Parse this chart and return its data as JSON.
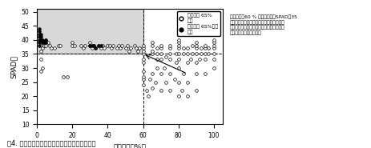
{
  "title": "図4. 飼料イネの籾黄化率と止め葉葉色値の関係",
  "xlabel": "籾黄化率（%）",
  "ylabel": "SPAD値",
  "xlim": [
    0,
    105
  ],
  "ylim": [
    10,
    51
  ],
  "xticks": [
    0,
    20,
    40,
    60,
    80,
    100
  ],
  "yticks": [
    10,
    15,
    20,
    25,
    30,
    35,
    40,
    45,
    50
  ],
  "hline_y": 35,
  "vline_x": 60,
  "legend_label_open": "水分含量 65%\n以下",
  "legend_label_filled": "水分含量 65%より\n高い",
  "annotation_text": "籾黄化率が60 % 未満、止め葉SPAD値35\nより大きい場合は、多肥栽培条件でダイレ\nクトカット収穫に不適な高水分条件の飼料\nイネの圃場が出てくる。",
  "open_points": [
    [
      2,
      29
    ],
    [
      2,
      33
    ],
    [
      2,
      36
    ],
    [
      2,
      38
    ],
    [
      3,
      30
    ],
    [
      3,
      37
    ],
    [
      4,
      38
    ],
    [
      5,
      38
    ],
    [
      5,
      40
    ],
    [
      6,
      39
    ],
    [
      7,
      38
    ],
    [
      8,
      37
    ],
    [
      10,
      37
    ],
    [
      12,
      38
    ],
    [
      13,
      38
    ],
    [
      15,
      27
    ],
    [
      17,
      27
    ],
    [
      20,
      38
    ],
    [
      20,
      39
    ],
    [
      21,
      38
    ],
    [
      25,
      38
    ],
    [
      26,
      37
    ],
    [
      27,
      38
    ],
    [
      30,
      38
    ],
    [
      30,
      39
    ],
    [
      31,
      37
    ],
    [
      32,
      38
    ],
    [
      33,
      37
    ],
    [
      35,
      38
    ],
    [
      36,
      37
    ],
    [
      37,
      38
    ],
    [
      38,
      37
    ],
    [
      40,
      38
    ],
    [
      41,
      38
    ],
    [
      42,
      37
    ],
    [
      43,
      38
    ],
    [
      45,
      37
    ],
    [
      46,
      38
    ],
    [
      47,
      37
    ],
    [
      48,
      38
    ],
    [
      50,
      37
    ],
    [
      51,
      38
    ],
    [
      52,
      36
    ],
    [
      53,
      37
    ],
    [
      55,
      38
    ],
    [
      56,
      37
    ],
    [
      57,
      36
    ],
    [
      58,
      37
    ],
    [
      60,
      24
    ],
    [
      60,
      26
    ],
    [
      60,
      27
    ],
    [
      60,
      29
    ],
    [
      60,
      32
    ],
    [
      60,
      33
    ],
    [
      60,
      35
    ],
    [
      60,
      36
    ],
    [
      60,
      37
    ],
    [
      60,
      38
    ],
    [
      62,
      22
    ],
    [
      63,
      20
    ],
    [
      64,
      26
    ],
    [
      65,
      23
    ],
    [
      65,
      28
    ],
    [
      65,
      35
    ],
    [
      65,
      36
    ],
    [
      65,
      38
    ],
    [
      65,
      39
    ],
    [
      67,
      25
    ],
    [
      68,
      30
    ],
    [
      68,
      33
    ],
    [
      68,
      35
    ],
    [
      68,
      37
    ],
    [
      70,
      22
    ],
    [
      70,
      28
    ],
    [
      70,
      33
    ],
    [
      70,
      35
    ],
    [
      70,
      37
    ],
    [
      70,
      38
    ],
    [
      72,
      30
    ],
    [
      73,
      25
    ],
    [
      73,
      34
    ],
    [
      75,
      22
    ],
    [
      75,
      28
    ],
    [
      75,
      33
    ],
    [
      75,
      35
    ],
    [
      75,
      37
    ],
    [
      75,
      38
    ],
    [
      78,
      26
    ],
    [
      79,
      32
    ],
    [
      79,
      35
    ],
    [
      80,
      20
    ],
    [
      80,
      25
    ],
    [
      80,
      30
    ],
    [
      80,
      33
    ],
    [
      80,
      35
    ],
    [
      80,
      37
    ],
    [
      80,
      38
    ],
    [
      80,
      39
    ],
    [
      80,
      40
    ],
    [
      82,
      22
    ],
    [
      83,
      28
    ],
    [
      83,
      35
    ],
    [
      83,
      37
    ],
    [
      85,
      20
    ],
    [
      85,
      25
    ],
    [
      85,
      32
    ],
    [
      85,
      35
    ],
    [
      85,
      37
    ],
    [
      87,
      33
    ],
    [
      88,
      35
    ],
    [
      88,
      38
    ],
    [
      90,
      22
    ],
    [
      90,
      28
    ],
    [
      90,
      32
    ],
    [
      90,
      35
    ],
    [
      90,
      37
    ],
    [
      90,
      38
    ],
    [
      90,
      39
    ],
    [
      92,
      33
    ],
    [
      93,
      35
    ],
    [
      93,
      37
    ],
    [
      95,
      28
    ],
    [
      95,
      33
    ],
    [
      95,
      35
    ],
    [
      95,
      37
    ],
    [
      95,
      38
    ],
    [
      97,
      35
    ],
    [
      97,
      37
    ],
    [
      100,
      30
    ],
    [
      100,
      33
    ],
    [
      100,
      35
    ],
    [
      100,
      37
    ],
    [
      100,
      38
    ],
    [
      100,
      39
    ],
    [
      100,
      40
    ]
  ],
  "filled_points": [
    [
      1,
      38
    ],
    [
      1,
      39
    ],
    [
      1,
      40
    ],
    [
      1,
      41
    ],
    [
      1,
      42
    ],
    [
      1,
      43
    ],
    [
      1,
      44
    ],
    [
      2,
      40
    ],
    [
      2,
      41
    ],
    [
      2,
      42
    ],
    [
      3,
      39
    ],
    [
      3,
      40
    ],
    [
      4,
      39
    ],
    [
      5,
      39
    ],
    [
      5,
      40
    ],
    [
      30,
      38
    ],
    [
      31,
      38
    ],
    [
      32,
      38
    ],
    [
      33,
      37
    ],
    [
      35,
      38
    ],
    [
      36,
      38
    ]
  ]
}
